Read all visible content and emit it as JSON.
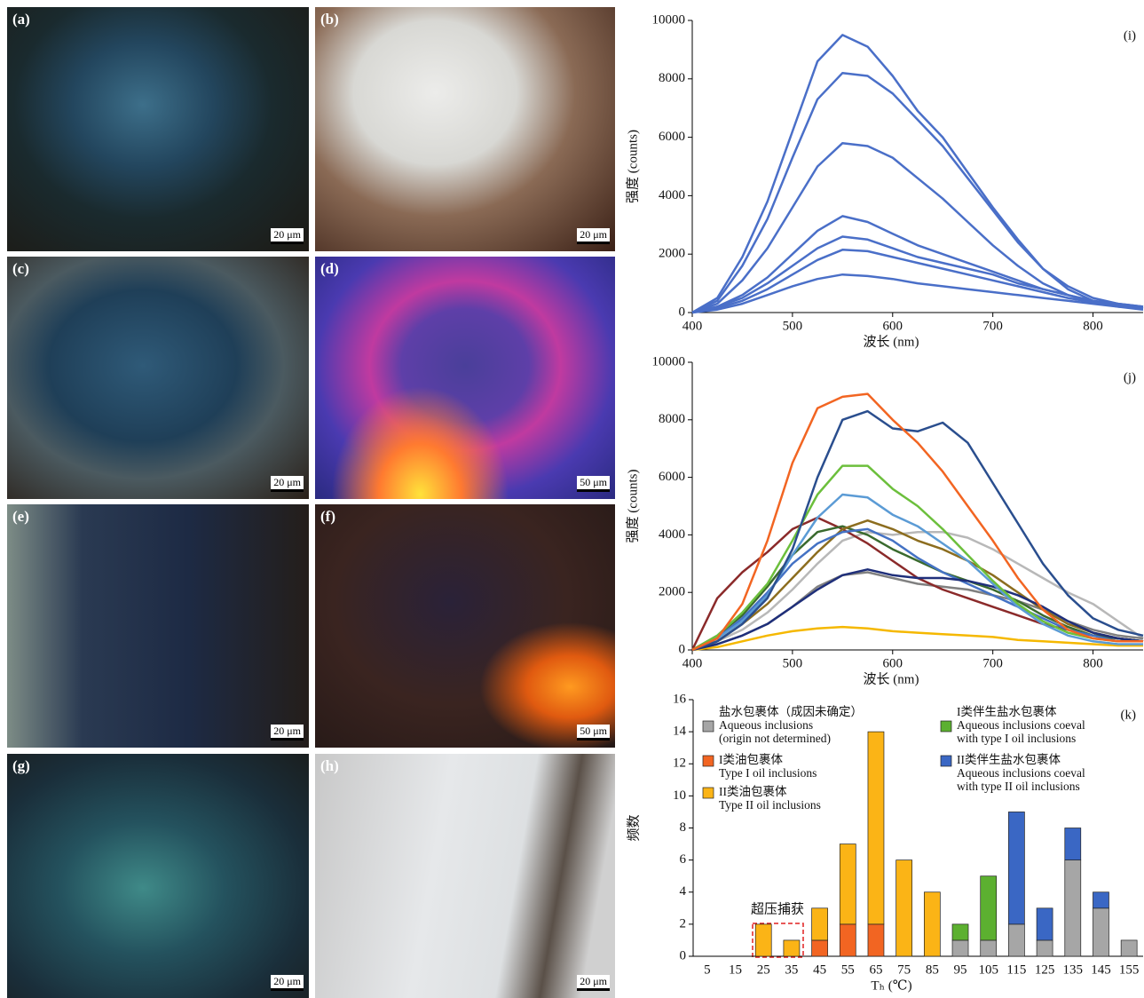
{
  "panels": [
    {
      "label": "(a)",
      "scale": "20 μm"
    },
    {
      "label": "(b)",
      "scale": "20 μm"
    },
    {
      "label": "(c)",
      "scale": "20 μm"
    },
    {
      "label": "(d)",
      "scale": "50 μm"
    },
    {
      "label": "(e)",
      "scale": "20 μm"
    },
    {
      "label": "(f)",
      "scale": "50 μm"
    },
    {
      "label": "(g)",
      "scale": "20 μm"
    },
    {
      "label": "(h)",
      "scale": "20 μm"
    }
  ],
  "chart_data": [
    {
      "type": "line",
      "panel_label": "(i)",
      "xlabel": "波长 (nm)",
      "ylabel": "强度 (counts)",
      "x": [
        400,
        425,
        450,
        475,
        500,
        525,
        550,
        575,
        600,
        625,
        650,
        675,
        700,
        725,
        750,
        775,
        800,
        825,
        850
      ],
      "xlim": [
        400,
        850
      ],
      "xticks": [
        400,
        500,
        600,
        700,
        800
      ],
      "ylim": [
        0,
        10000
      ],
      "yticks": [
        0,
        2000,
        4000,
        6000,
        8000,
        10000
      ],
      "series": [
        {
          "color": "#4a6fc8",
          "values": [
            0,
            500,
            1900,
            3800,
            6200,
            8600,
            9500,
            9100,
            8100,
            6900,
            6000,
            4800,
            3600,
            2500,
            1500,
            900,
            500,
            300,
            200
          ]
        },
        {
          "color": "#4a6fc8",
          "values": [
            0,
            400,
            1600,
            3200,
            5300,
            7300,
            8200,
            8100,
            7500,
            6600,
            5700,
            4600,
            3500,
            2400,
            1500,
            800,
            400,
            250,
            150
          ]
        },
        {
          "color": "#4a6fc8",
          "values": [
            0,
            300,
            1100,
            2200,
            3600,
            5000,
            5800,
            5700,
            5300,
            4600,
            3900,
            3100,
            2300,
            1600,
            1000,
            600,
            350,
            200,
            100
          ]
        },
        {
          "color": "#4a6fc8",
          "values": [
            0,
            200,
            600,
            1200,
            2000,
            2800,
            3300,
            3100,
            2700,
            2300,
            2000,
            1700,
            1400,
            1100,
            800,
            600,
            400,
            250,
            150
          ]
        },
        {
          "color": "#4a6fc8",
          "values": [
            0,
            200,
            500,
            1000,
            1600,
            2200,
            2600,
            2500,
            2200,
            1900,
            1700,
            1500,
            1300,
            1000,
            800,
            600,
            400,
            300,
            200
          ]
        },
        {
          "color": "#4a6fc8",
          "values": [
            0,
            150,
            400,
            800,
            1300,
            1800,
            2150,
            2100,
            1900,
            1700,
            1500,
            1300,
            1100,
            900,
            700,
            500,
            350,
            250,
            150
          ]
        },
        {
          "color": "#4a6fc8",
          "values": [
            0,
            100,
            300,
            600,
            900,
            1150,
            1300,
            1250,
            1150,
            1000,
            900,
            800,
            700,
            600,
            500,
            400,
            300,
            200,
            150
          ]
        }
      ]
    },
    {
      "type": "line",
      "panel_label": "(j)",
      "xlabel": "波长 (nm)",
      "ylabel": "强度 (counts)",
      "x": [
        400,
        425,
        450,
        475,
        500,
        525,
        550,
        575,
        600,
        625,
        650,
        675,
        700,
        725,
        750,
        775,
        800,
        825,
        850
      ],
      "xlim": [
        400,
        850
      ],
      "xticks": [
        400,
        500,
        600,
        700,
        800
      ],
      "ylim": [
        0,
        10000
      ],
      "yticks": [
        0,
        2000,
        4000,
        6000,
        8000,
        10000
      ],
      "series": [
        {
          "color": "#b8b8b8",
          "values": [
            0,
            300,
            700,
            1300,
            2100,
            3000,
            3800,
            4100,
            4000,
            4100,
            4100,
            3900,
            3500,
            3000,
            2500,
            2000,
            1600,
            1000,
            400
          ]
        },
        {
          "color": "#808080",
          "values": [
            0,
            200,
            500,
            900,
            1500,
            2200,
            2600,
            2700,
            2500,
            2300,
            2200,
            2100,
            1900,
            1700,
            1400,
            1000,
            700,
            500,
            400
          ]
        },
        {
          "color": "#f5b800",
          "values": [
            0,
            100,
            300,
            500,
            650,
            750,
            800,
            750,
            650,
            600,
            550,
            500,
            450,
            350,
            300,
            250,
            200,
            150,
            150
          ]
        },
        {
          "color": "#8b2a2a",
          "values": [
            0,
            1800,
            2700,
            3400,
            4200,
            4600,
            4200,
            3700,
            3100,
            2500,
            2100,
            1800,
            1500,
            1200,
            900,
            700,
            500,
            400,
            300
          ]
        },
        {
          "color": "#3a6a2e",
          "values": [
            0,
            500,
            1200,
            2200,
            3300,
            4100,
            4300,
            4000,
            3500,
            3100,
            2700,
            2400,
            2100,
            1700,
            1200,
            800,
            500,
            400,
            300
          ]
        },
        {
          "color": "#8c6d1f",
          "values": [
            0,
            300,
            900,
            1600,
            2500,
            3400,
            4200,
            4500,
            4200,
            3800,
            3500,
            3100,
            2600,
            2000,
            1400,
            900,
            600,
            400,
            300
          ]
        },
        {
          "color": "#4472c4",
          "values": [
            0,
            400,
            1100,
            2000,
            3000,
            3700,
            4100,
            4200,
            3800,
            3200,
            2700,
            2300,
            1900,
            1500,
            1100,
            700,
            500,
            300,
            300
          ]
        },
        {
          "color": "#1f2f7a",
          "values": [
            0,
            200,
            500,
            900,
            1500,
            2100,
            2600,
            2800,
            2600,
            2500,
            2500,
            2400,
            2200,
            1900,
            1500,
            1000,
            600,
            400,
            300
          ]
        },
        {
          "color": "#5b9bd5",
          "values": [
            0,
            400,
            1000,
            1900,
            3300,
            4600,
            5400,
            5300,
            4700,
            4300,
            3700,
            3100,
            2300,
            1500,
            900,
            500,
            300,
            200,
            200
          ]
        },
        {
          "color": "#6cbf3c",
          "values": [
            0,
            500,
            1300,
            2300,
            3800,
            5400,
            6400,
            6400,
            5600,
            5000,
            4200,
            3300,
            2400,
            1600,
            1000,
            600,
            400,
            300,
            300
          ]
        },
        {
          "color": "#2a4e8e",
          "values": [
            0,
            300,
            900,
            1800,
            3500,
            6000,
            8000,
            8300,
            7700,
            7600,
            7900,
            7200,
            5800,
            4400,
            3000,
            1900,
            1100,
            700,
            500
          ]
        },
        {
          "color": "#f26522",
          "values": [
            0,
            400,
            1600,
            3800,
            6500,
            8400,
            8800,
            8900,
            8000,
            7200,
            6200,
            5000,
            3800,
            2500,
            1400,
            700,
            400,
            300,
            300
          ]
        }
      ]
    },
    {
      "type": "bar",
      "stacked": true,
      "panel_label": "(k)",
      "xlabel": "Tₕ (℃)",
      "ylabel": "频数",
      "annotation": "超压捕获",
      "categories": [
        "5",
        "15",
        "25",
        "35",
        "45",
        "55",
        "65",
        "75",
        "85",
        "95",
        "105",
        "115",
        "125",
        "135",
        "145",
        "155"
      ],
      "ylim": [
        0,
        16
      ],
      "yticks": [
        0,
        2,
        4,
        6,
        8,
        10,
        12,
        14,
        16
      ],
      "series": [
        {
          "name": [
            "盐水包裹体（成因未确定）",
            "Aqueous inclusions",
            "(origin not determined)"
          ],
          "color": "#a6a6a6",
          "values": [
            0,
            0,
            0,
            0,
            0,
            0,
            0,
            0,
            0,
            1,
            1,
            2,
            1,
            6,
            3,
            1
          ]
        },
        {
          "name": [
            "I类油包裹体",
            "Type I oil inclusions"
          ],
          "color": "#f26522",
          "values": [
            0,
            0,
            0,
            0,
            1,
            2,
            2,
            0,
            0,
            0,
            0,
            0,
            0,
            0,
            0,
            0
          ]
        },
        {
          "name": [
            "II类油包裹体",
            "Type II oil inclusions"
          ],
          "color": "#fbb416",
          "values": [
            0,
            0,
            2,
            1,
            2,
            5,
            12,
            6,
            4,
            0,
            0,
            0,
            0,
            0,
            0,
            0
          ]
        },
        {
          "name": [
            "I类伴生盐水包裹体",
            "Aqueous inclusions coeval",
            "with type I oil inclusions"
          ],
          "color": "#5cb030",
          "values": [
            0,
            0,
            0,
            0,
            0,
            0,
            0,
            0,
            0,
            1,
            4,
            0,
            0,
            0,
            0,
            0
          ]
        },
        {
          "name": [
            "II类伴生盐水包裹体",
            "Aqueous inclusions coeval",
            "with type II oil inclusions"
          ],
          "color": "#3a67c4",
          "values": [
            0,
            0,
            0,
            0,
            0,
            0,
            0,
            0,
            0,
            0,
            0,
            7,
            2,
            2,
            1,
            0
          ]
        }
      ]
    }
  ]
}
